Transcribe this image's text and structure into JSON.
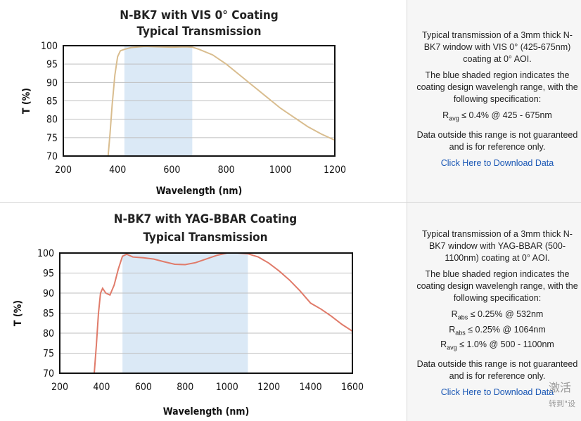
{
  "charts": [
    {
      "title_line1": "N-BK7 with VIS 0° Coating",
      "title_line2": "Typical Transmission",
      "description": "Typical transmission of a 3mm thick N-BK7 window with VIS 0° (425-675nm) coating at 0° AOI.",
      "shaded_note": "The blue shaded region indicates the coating design wavelengh range, with the following specification:",
      "specs": [
        {
          "sym": "R",
          "sub": "avg",
          "rest": " ≤ 0.4% @ 425 - 675nm"
        }
      ],
      "disclaimer": "Data outside this range is not guaranteed and is for reference only.",
      "link": "Click Here to Download Data"
    },
    {
      "title_line1": "N-BK7 with YAG-BBAR Coating",
      "title_line2": "Typical Transmission",
      "description": "Typical transmission of a 3mm thick N-BK7 window with YAG-BBAR (500-1100nm) coating at 0° AOI.",
      "shaded_note": "The blue shaded region indicates the coating design wavelengh range, with the following specification:",
      "specs": [
        {
          "sym": "R",
          "sub": "abs",
          "rest": " ≤ 0.25% @ 532nm"
        },
        {
          "sym": "R",
          "sub": "abs",
          "rest": " ≤ 0.25% @ 1064nm"
        },
        {
          "sym": "R",
          "sub": "avg",
          "rest": " ≤ 1.0% @ 500 - 1100nm"
        }
      ],
      "disclaimer": "Data outside this range is not guaranteed and is for reference only.",
      "link": "Click Here to Download Data"
    }
  ],
  "watermark": {
    "line1": "激活",
    "line2": "转到\"设"
  },
  "chart_data": [
    {
      "type": "line",
      "title": "N-BK7 with VIS 0° Coating Typical Transmission",
      "xlabel": "Wavelength (nm)",
      "ylabel": "T (%)",
      "xlim": [
        200,
        1200
      ],
      "ylim": [
        70,
        100
      ],
      "xticks": [
        200,
        400,
        600,
        800,
        1000,
        1200
      ],
      "yticks": [
        70,
        75,
        80,
        85,
        90,
        95,
        100
      ],
      "grid": true,
      "shaded_region": [
        425,
        675
      ],
      "line_color": "#d9bd8f",
      "shade_color": "#dbe9f6",
      "series": [
        {
          "x": [
            365,
            372,
            380,
            390,
            400,
            410,
            425,
            450,
            500,
            550,
            600,
            650,
            675,
            700,
            750,
            800,
            850,
            900,
            950,
            1000,
            1050,
            1100,
            1150,
            1200
          ],
          "y": [
            70,
            76,
            84,
            92,
            97,
            98.6,
            99,
            99.5,
            99.8,
            99.7,
            99.6,
            99.7,
            99.6,
            99.0,
            97.5,
            95.0,
            92.0,
            89.0,
            86.0,
            83.0,
            80.5,
            78.0,
            76.0,
            74.3
          ]
        }
      ]
    },
    {
      "type": "line",
      "title": "N-BK7 with YAG-BBAR Coating Typical Transmission",
      "xlabel": "Wavelength (nm)",
      "ylabel": "T (%)",
      "xlim": [
        200,
        1600
      ],
      "ylim": [
        70,
        100
      ],
      "xticks": [
        200,
        400,
        600,
        800,
        1000,
        1200,
        1400,
        1600
      ],
      "yticks": [
        70,
        75,
        80,
        85,
        90,
        95,
        100
      ],
      "grid": true,
      "shaded_region": [
        500,
        1100
      ],
      "line_color": "#e07b6a",
      "shade_color": "#dbe9f6",
      "series": [
        {
          "x": [
            365,
            375,
            385,
            395,
            405,
            420,
            440,
            460,
            480,
            500,
            520,
            550,
            600,
            650,
            700,
            750,
            800,
            850,
            900,
            950,
            1000,
            1050,
            1100,
            1150,
            1200,
            1250,
            1300,
            1350,
            1400,
            1450,
            1500,
            1550,
            1600
          ],
          "y": [
            70,
            77,
            85,
            90,
            91.2,
            90.0,
            89.5,
            92.0,
            96.0,
            99.2,
            99.7,
            99.0,
            98.8,
            98.5,
            97.8,
            97.2,
            97.1,
            97.6,
            98.5,
            99.4,
            100.0,
            100.0,
            99.8,
            99.0,
            97.5,
            95.5,
            93.2,
            90.5,
            87.5,
            86.0,
            84.2,
            82.2,
            80.5
          ]
        }
      ]
    }
  ]
}
